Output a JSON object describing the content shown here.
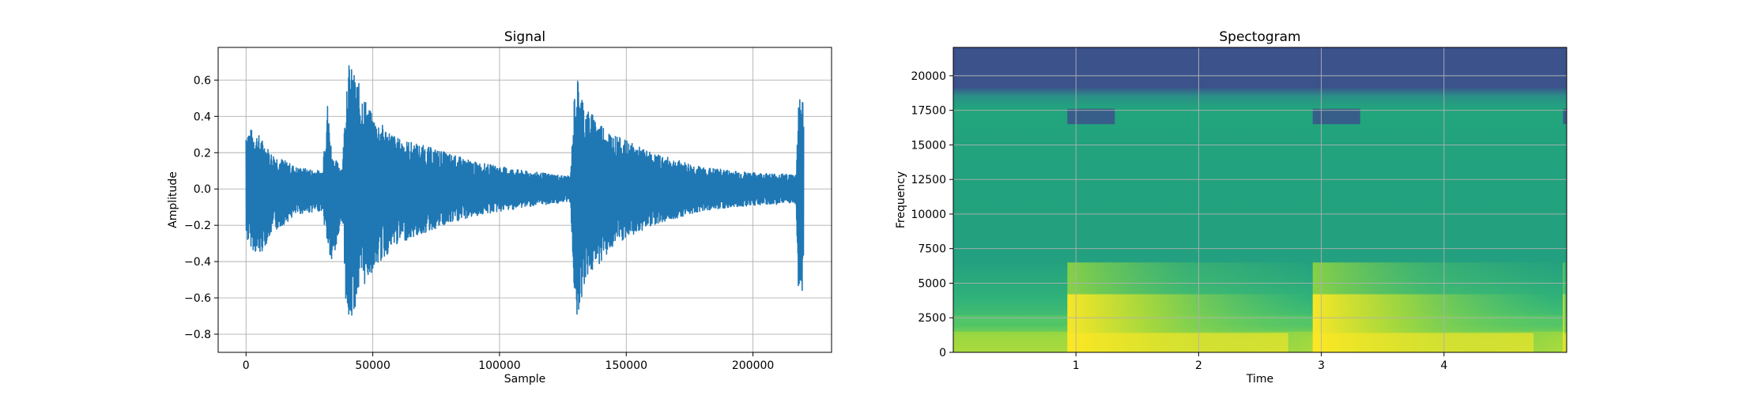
{
  "chart_data": [
    {
      "type": "line",
      "title": "Signal",
      "xlabel": "Sample",
      "ylabel": "Amplitude",
      "xlim": [
        -11000,
        231000
      ],
      "ylim": [
        -0.9,
        0.78
      ],
      "x_ticks": [
        0,
        50000,
        100000,
        150000,
        200000
      ],
      "x_tick_labels": [
        "0",
        "50000",
        "100000",
        "150000",
        "200000"
      ],
      "y_ticks": [
        -0.8,
        -0.6,
        -0.4,
        -0.2,
        0.0,
        0.2,
        0.4,
        0.6
      ],
      "y_tick_labels": [
        "−0.8",
        "−0.6",
        "−0.4",
        "−0.2",
        "0.0",
        "0.2",
        "0.4",
        "0.6"
      ],
      "grid": true,
      "color": "#1f77b4",
      "series": [
        {
          "envelope": [
            {
              "x": 0,
              "max": 0.35,
              "min": -0.28
            },
            {
              "x": 5000,
              "max": 0.3,
              "min": -0.38
            },
            {
              "x": 10000,
              "max": 0.2,
              "min": -0.25
            },
            {
              "x": 20000,
              "max": 0.12,
              "min": -0.14
            },
            {
              "x": 30000,
              "max": 0.1,
              "min": -0.12
            },
            {
              "x": 32000,
              "max": 0.5,
              "min": -0.3
            },
            {
              "x": 34000,
              "max": 0.18,
              "min": -0.45
            },
            {
              "x": 38000,
              "max": 0.12,
              "min": -0.15
            },
            {
              "x": 40000,
              "max": 0.71,
              "min": -0.82
            },
            {
              "x": 44000,
              "max": 0.6,
              "min": -0.6
            },
            {
              "x": 50000,
              "max": 0.4,
              "min": -0.45
            },
            {
              "x": 60000,
              "max": 0.28,
              "min": -0.3
            },
            {
              "x": 75000,
              "max": 0.22,
              "min": -0.22
            },
            {
              "x": 90000,
              "max": 0.15,
              "min": -0.15
            },
            {
              "x": 110000,
              "max": 0.1,
              "min": -0.1
            },
            {
              "x": 128000,
              "max": 0.07,
              "min": -0.07
            },
            {
              "x": 130000,
              "max": 0.65,
              "min": -0.74
            },
            {
              "x": 134000,
              "max": 0.45,
              "min": -0.5
            },
            {
              "x": 145000,
              "max": 0.3,
              "min": -0.32
            },
            {
              "x": 160000,
              "max": 0.2,
              "min": -0.2
            },
            {
              "x": 180000,
              "max": 0.12,
              "min": -0.12
            },
            {
              "x": 200000,
              "max": 0.09,
              "min": -0.09
            },
            {
              "x": 217000,
              "max": 0.08,
              "min": -0.08
            },
            {
              "x": 218000,
              "max": 0.52,
              "min": -0.6
            },
            {
              "x": 220000,
              "max": 0.5,
              "min": -0.55
            }
          ]
        }
      ]
    },
    {
      "type": "heatmap",
      "title": "Spectogram",
      "xlabel": "Time",
      "ylabel": "Frequency",
      "xlim": [
        0,
        5.0
      ],
      "ylim": [
        0,
        22050
      ],
      "x_ticks": [
        1,
        2,
        3,
        4
      ],
      "x_tick_labels": [
        "1",
        "2",
        "3",
        "4"
      ],
      "y_ticks": [
        0,
        2500,
        5000,
        7500,
        10000,
        12500,
        15000,
        17500,
        20000
      ],
      "y_tick_labels": [
        "0",
        "2500",
        "5000",
        "7500",
        "10000",
        "12500",
        "15000",
        "17500",
        "20000"
      ],
      "grid": true,
      "colormap": "viridis",
      "colors": {
        "high_band": "#3b528b",
        "body": "#23a17f",
        "low_band": "#b6dc34",
        "peak": "#fde725",
        "mid": "#5ec962"
      },
      "onsets": [
        0.93,
        2.93,
        4.97
      ],
      "cutoff_hz": 17500
    }
  ]
}
